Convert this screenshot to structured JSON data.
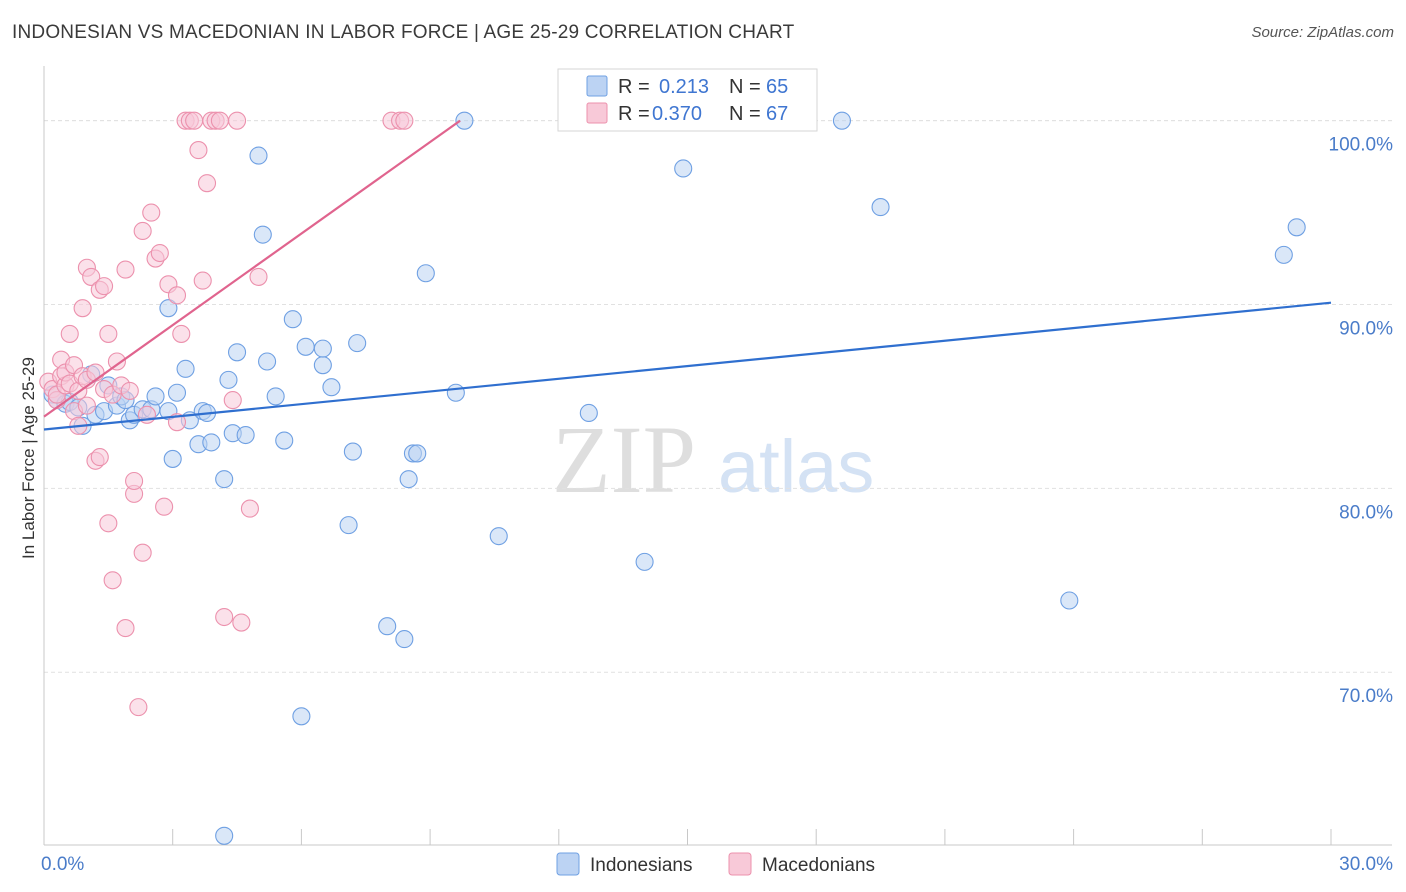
{
  "header": {
    "title": "INDONESIAN VS MACEDONIAN IN LABOR FORCE | AGE 25-29 CORRELATION CHART",
    "source": "Source: ZipAtlas.com"
  },
  "watermark": {
    "zip": "ZIP",
    "atlas": "atlas"
  },
  "colors": {
    "indonesians": "#6fa0e3",
    "indonesians_fill": "#bcd3f3",
    "indonesians_line": "#2f6fcf",
    "macedonians": "#ec91ad",
    "macedonians_fill": "#f8c9d8",
    "macedonians_line": "#e0648e",
    "axis_text": "#4a7cc9"
  },
  "stats_legend": {
    "rows": [
      {
        "r_label": "R =",
        "r_value": "0.213",
        "n_label": "N =",
        "n_value": "65"
      },
      {
        "r_label": "R =",
        "r_value": "0.370",
        "n_label": "N =",
        "n_value": "67"
      }
    ]
  },
  "bottom_legend": {
    "items": [
      "Indonesians",
      "Macedonians"
    ]
  },
  "chart_data": {
    "type": "scatter",
    "title": "INDONESIAN VS MACEDONIAN IN LABOR FORCE | AGE 25-29 CORRELATION CHART",
    "xlabel": "",
    "ylabel": "In Labor Force | Age 25-29",
    "xlim": [
      0,
      30
    ],
    "ylim": [
      60.6,
      103.3
    ],
    "x_tick_labels": [
      "0.0%",
      "30.0%"
    ],
    "y_ticks": [
      70,
      80,
      90,
      100
    ],
    "y_tick_labels": [
      "70.0%",
      "80.0%",
      "90.0%",
      "100.0%"
    ],
    "grid": true,
    "series": [
      {
        "name": "Indonesians",
        "r": 0.213,
        "n": 65,
        "trend": {
          "x0": 0,
          "y0": 83.2,
          "x1": 30,
          "y1": 90.1
        },
        "points": [
          [
            0.2,
            85.1
          ],
          [
            0.3,
            84.8
          ],
          [
            0.5,
            84.6
          ],
          [
            0.6,
            84.7
          ],
          [
            0.8,
            84.4
          ],
          [
            0.9,
            83.4
          ],
          [
            1.1,
            86.2
          ],
          [
            1.2,
            84.0
          ],
          [
            1.4,
            84.2
          ],
          [
            1.5,
            85.6
          ],
          [
            1.7,
            84.5
          ],
          [
            1.8,
            85.0
          ],
          [
            2.0,
            83.7
          ],
          [
            2.1,
            84.0
          ],
          [
            2.3,
            84.3
          ],
          [
            2.5,
            84.3
          ],
          [
            2.6,
            85.0
          ],
          [
            2.9,
            89.8
          ],
          [
            3.0,
            81.6
          ],
          [
            3.1,
            85.2
          ],
          [
            3.3,
            86.5
          ],
          [
            3.4,
            83.7
          ],
          [
            3.6,
            82.4
          ],
          [
            3.7,
            84.2
          ],
          [
            3.8,
            84.1
          ],
          [
            3.9,
            82.5
          ],
          [
            4.2,
            80.5
          ],
          [
            4.3,
            85.9
          ],
          [
            4.4,
            83.0
          ],
          [
            4.5,
            87.4
          ],
          [
            4.7,
            82.9
          ],
          [
            5.0,
            98.1
          ],
          [
            5.1,
            93.8
          ],
          [
            5.2,
            86.9
          ],
          [
            5.4,
            85.0
          ],
          [
            5.6,
            82.6
          ],
          [
            5.8,
            89.2
          ],
          [
            6.0,
            67.6
          ],
          [
            6.1,
            87.7
          ],
          [
            6.5,
            86.7
          ],
          [
            6.5,
            87.6
          ],
          [
            6.7,
            85.5
          ],
          [
            7.1,
            78.0
          ],
          [
            7.2,
            82.0
          ],
          [
            7.3,
            87.9
          ],
          [
            8.0,
            72.5
          ],
          [
            8.4,
            71.8
          ],
          [
            8.5,
            80.5
          ],
          [
            8.6,
            81.9
          ],
          [
            8.7,
            81.9
          ],
          [
            8.9,
            91.7
          ],
          [
            9.6,
            85.2
          ],
          [
            9.8,
            100.0
          ],
          [
            10.6,
            77.4
          ],
          [
            12.7,
            84.1
          ],
          [
            14.0,
            76.0
          ],
          [
            14.9,
            97.4
          ],
          [
            18.6,
            100.0
          ],
          [
            19.5,
            95.3
          ],
          [
            23.9,
            73.9
          ],
          [
            28.9,
            92.7
          ],
          [
            29.2,
            94.2
          ],
          [
            4.2,
            61.1
          ],
          [
            2.9,
            84.2
          ],
          [
            1.9,
            84.8
          ]
        ]
      },
      {
        "name": "Macedonians",
        "r": 0.37,
        "n": 67,
        "trend": {
          "x0": 0,
          "y0": 83.9,
          "x1": 9.7,
          "y1": 100.0
        },
        "points": [
          [
            0.1,
            85.8
          ],
          [
            0.2,
            85.4
          ],
          [
            0.3,
            84.8
          ],
          [
            0.3,
            85.1
          ],
          [
            0.4,
            86.1
          ],
          [
            0.4,
            87.0
          ],
          [
            0.5,
            85.6
          ],
          [
            0.5,
            86.3
          ],
          [
            0.6,
            85.7
          ],
          [
            0.6,
            88.4
          ],
          [
            0.7,
            84.2
          ],
          [
            0.7,
            86.7
          ],
          [
            0.8,
            83.4
          ],
          [
            0.8,
            85.3
          ],
          [
            0.9,
            86.1
          ],
          [
            0.9,
            89.8
          ],
          [
            1.0,
            85.9
          ],
          [
            1.0,
            84.5
          ],
          [
            1.0,
            92.0
          ],
          [
            1.1,
            91.5
          ],
          [
            1.2,
            81.5
          ],
          [
            1.2,
            86.3
          ],
          [
            1.3,
            81.7
          ],
          [
            1.3,
            90.8
          ],
          [
            1.4,
            85.4
          ],
          [
            1.4,
            91.0
          ],
          [
            1.5,
            78.1
          ],
          [
            1.5,
            88.4
          ],
          [
            1.6,
            85.1
          ],
          [
            1.6,
            75.0
          ],
          [
            1.7,
            86.9
          ],
          [
            1.8,
            85.6
          ],
          [
            1.9,
            91.9
          ],
          [
            1.9,
            72.4
          ],
          [
            2.0,
            85.3
          ],
          [
            2.1,
            79.7
          ],
          [
            2.1,
            80.4
          ],
          [
            2.2,
            68.1
          ],
          [
            2.3,
            76.5
          ],
          [
            2.3,
            94.0
          ],
          [
            2.4,
            84.0
          ],
          [
            2.5,
            95.0
          ],
          [
            2.6,
            92.5
          ],
          [
            2.7,
            92.8
          ],
          [
            2.8,
            79.0
          ],
          [
            2.9,
            91.1
          ],
          [
            3.1,
            83.6
          ],
          [
            3.1,
            90.5
          ],
          [
            3.2,
            88.4
          ],
          [
            3.3,
            100.0
          ],
          [
            3.4,
            100.0
          ],
          [
            3.5,
            100.0
          ],
          [
            3.6,
            98.4
          ],
          [
            3.7,
            91.3
          ],
          [
            3.8,
            96.6
          ],
          [
            3.9,
            100.0
          ],
          [
            4.0,
            100.0
          ],
          [
            4.1,
            100.0
          ],
          [
            4.2,
            73.0
          ],
          [
            4.4,
            84.8
          ],
          [
            4.5,
            100.0
          ],
          [
            4.6,
            72.7
          ],
          [
            4.8,
            78.9
          ],
          [
            5.0,
            91.5
          ],
          [
            8.1,
            100.0
          ],
          [
            8.3,
            100.0
          ],
          [
            8.4,
            100.0
          ]
        ]
      }
    ]
  }
}
